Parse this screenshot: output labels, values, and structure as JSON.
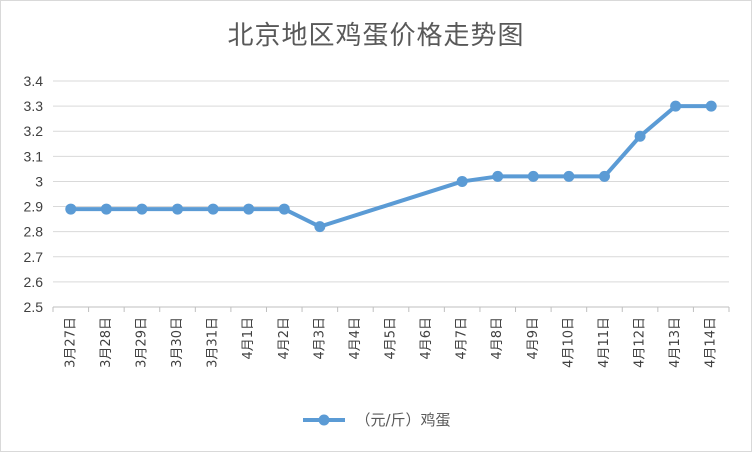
{
  "chart_data": {
    "type": "line",
    "title": "北京地区鸡蛋价格走势图",
    "xlabel": "",
    "ylabel": "",
    "categories": [
      "3月27日",
      "3月28日",
      "3月29日",
      "3月30日",
      "3月31日",
      "4月1日",
      "4月2日",
      "4月3日",
      "4月4日",
      "4月5日",
      "4月6日",
      "4月7日",
      "4月8日",
      "4月9日",
      "4月10日",
      "4月11日",
      "4月12日",
      "4月13日",
      "4月14日"
    ],
    "series": [
      {
        "name": "（元/斤）鸡蛋",
        "color": "#5b9bd5",
        "values": [
          2.89,
          2.89,
          2.89,
          2.89,
          2.89,
          2.89,
          2.89,
          2.82,
          null,
          null,
          null,
          3.0,
          3.02,
          3.02,
          3.02,
          3.02,
          3.18,
          3.3,
          3.3
        ]
      }
    ],
    "ylim": [
      2.5,
      3.4
    ],
    "yticks": [
      "2.5",
      "2.6",
      "2.7",
      "2.8",
      "2.9",
      "3",
      "3.1",
      "3.2",
      "3.3",
      "3.4"
    ],
    "grid": true,
    "legend": "bottom-center"
  }
}
